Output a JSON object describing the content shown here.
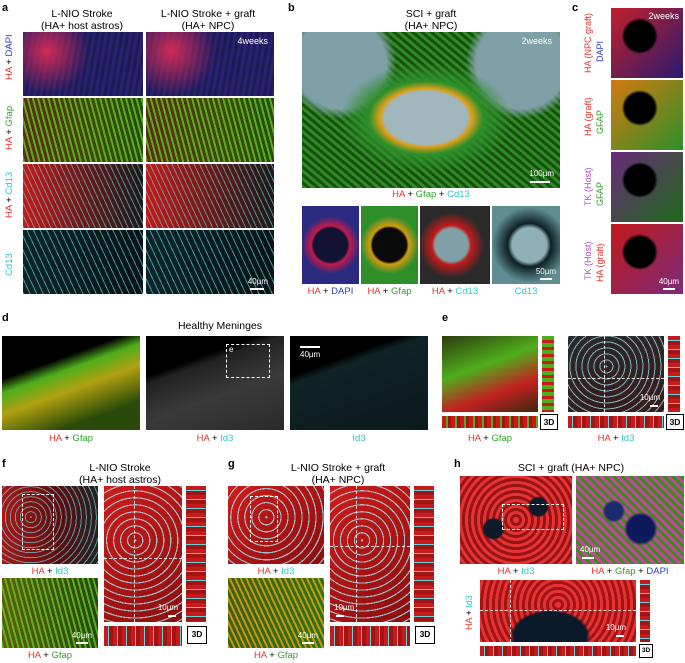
{
  "panels": {
    "a": {
      "letter": "a",
      "col1_title": "L-NIO Stroke\n(HA+ host astros)",
      "col2_title": "L-NIO Stroke + graft\n(HA+ NPC)",
      "timepoint": "4weeks",
      "row_labels": [
        {
          "p1": "HA",
          "p2": " + ",
          "p3": "DAPI"
        },
        {
          "p1": "HA",
          "p2": " + ",
          "p3": "Gfap"
        },
        {
          "p1": "HA",
          "p2": " + ",
          "p3": "Cd13"
        },
        {
          "p1": "",
          "p2": "",
          "p3": "Cd13"
        }
      ],
      "scale": "40µm"
    },
    "b": {
      "letter": "b",
      "title": "SCI + graft\n(HA+ NPC)",
      "timepoint": "2weeks",
      "scale_main": "100µm",
      "caption_main": {
        "p1": "HA",
        "p2": " + ",
        "p3": "Gfap",
        "p4": " + ",
        "p5": "Cd13"
      },
      "scale_small": "50µm",
      "small_captions": [
        {
          "p1": "HA",
          "p2": " + ",
          "p3": "DAPI"
        },
        {
          "p1": "HA",
          "p2": " + ",
          "p3": "Gfap"
        },
        {
          "p1": "HA",
          "p2": " + ",
          "p3": "Cd13"
        },
        {
          "p1": "",
          "p2": "",
          "p3": "Cd13"
        }
      ]
    },
    "c": {
      "letter": "c",
      "timepoint": "2weeks",
      "row_labels": [
        {
          "a": "HA (NPC graft)",
          "b": "DAPI"
        },
        {
          "a": "HA (graft)",
          "b": "GFAP"
        },
        {
          "a": "TK (Host)",
          "b": "GFAP"
        },
        {
          "a": "TK (Host)",
          "b": "HA (graft)"
        }
      ],
      "scale": "40µm"
    },
    "d": {
      "letter": "d",
      "title": "Healthy Meninges",
      "box_label": "e",
      "scale": "40µm",
      "captions": [
        {
          "p1": "HA",
          "p2": " + ",
          "p3": "Gfap"
        },
        {
          "p1": "HA",
          "p2": " + ",
          "p3": "Id3"
        },
        {
          "p1": "",
          "p2": "",
          "p3": "Id3"
        }
      ]
    },
    "e": {
      "letter": "e",
      "badge": "3D",
      "scale": "10µm",
      "captions": [
        {
          "p1": "HA",
          "p2": " + ",
          "p3": "Gfap"
        },
        {
          "p1": "HA",
          "p2": " + ",
          "p3": "Id3"
        }
      ]
    },
    "f": {
      "letter": "f",
      "title": "L-NIO Stroke\n(HA+ host astros)",
      "cap_top": {
        "p1": "HA",
        "p2": " + ",
        "p3": "Id3"
      },
      "cap_bottom": {
        "p1": "HA",
        "p2": " + ",
        "p3": "Gfap"
      },
      "scale_small": "40µm",
      "scale_zoom": "10µm",
      "badge": "3D"
    },
    "g": {
      "letter": "g",
      "title": "L-NIO Stroke + graft\n(HA+ NPC)",
      "cap_top": {
        "p1": "HA",
        "p2": " + ",
        "p3": "Id3"
      },
      "cap_bottom": {
        "p1": "HA",
        "p2": " + ",
        "p3": "Gfap"
      },
      "scale_small": "40µm",
      "scale_zoom": "10µm",
      "badge": "3D"
    },
    "h": {
      "letter": "h",
      "title": "SCI + graft (HA+ NPC)",
      "cap_left": {
        "p1": "HA",
        "p2": " + ",
        "p3": "Id3"
      },
      "cap_right": {
        "p1": "HA",
        "p2": " + ",
        "p3": "Gfap",
        "p4": " + ",
        "p5": "DAPI"
      },
      "scale_small": "40µm",
      "scale_zoom": "10µm",
      "vlabel": {
        "p1": "HA",
        "p2": " + ",
        "p3": "Id3"
      },
      "badge": "3D"
    }
  },
  "colors": {
    "HA": "#e8322c",
    "Gfap": "#2ea32a",
    "Cd13": "#33c6cc",
    "Id3": "#33c6cc",
    "DAPI": "#2b3ccc",
    "TK": "#b04cc0"
  }
}
